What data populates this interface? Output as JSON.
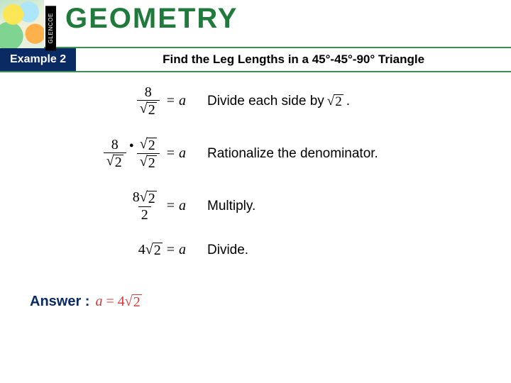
{
  "header": {
    "brand": "GLENCOE",
    "title": "GEOMETRY",
    "title_color": "#1f7a3c",
    "accent_color": "#3e8f52"
  },
  "section": {
    "example_label": "Example 2",
    "tab_bg": "#0a2a64",
    "title": "Find the Leg Lengths in a 45°-45°-90° Triangle"
  },
  "steps": [
    {
      "expl_prefix": "Divide each side by ",
      "expl_radicand": "2",
      "expl_suffix": "."
    },
    {
      "expl": "Rationalize the denominator."
    },
    {
      "expl": "Multiply."
    },
    {
      "expl": "Divide."
    }
  ],
  "answer": {
    "label": "Answer :",
    "var": "a",
    "coef": "4",
    "radicand": "2",
    "color": "#d23a3a"
  },
  "math": {
    "n8": "8",
    "n2": "2",
    "n4": "4",
    "var_a": "a",
    "eq": "="
  }
}
